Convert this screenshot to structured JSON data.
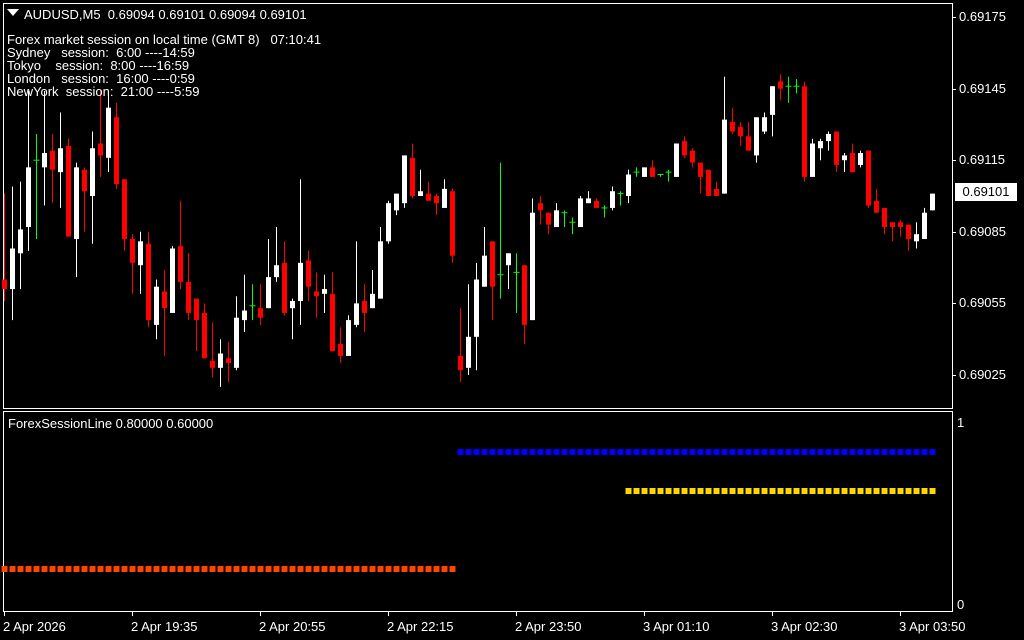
{
  "header": {
    "symbol_line": "AUDUSD,M5  0.69094 0.69101 0.69094 0.69101",
    "menu_icon": "triangle-down-icon"
  },
  "sessions": {
    "title": "Forex market session on local time (GMT 8)   07:10:41",
    "lines": [
      "Sydney   session:  6:00 ----14:59",
      "Tokyo    session:  8:00 ----16:59",
      "London   session:  16:00 ----0:59",
      "NewYork  session:  21:00 ----5:59"
    ]
  },
  "colors": {
    "bull": "#ffffff",
    "bear": "#ff0000",
    "doji": "#00ff00",
    "background": "#000000",
    "grid_border": "#ffffff"
  },
  "chart_data": [
    {
      "type": "candlestick",
      "symbol": "AUDUSD",
      "timeframe": "M5",
      "ylim": [
        0.69018,
        0.69178
      ],
      "price_ticks": [
        "0.69175",
        "0.69145",
        "0.69115",
        "0.69085",
        "0.69055",
        "0.69025"
      ],
      "current_price": "0.69101",
      "time_labels": [
        "2 Apr 2026",
        "2 Apr 19:35",
        "2 Apr 20:55",
        "2 Apr 22:15",
        "2 Apr 23:50",
        "3 Apr 01:10",
        "3 Apr 02:30",
        "3 Apr 03:50"
      ],
      "ohlc": [
        [
          0.69065,
          0.69101,
          0.69056,
          0.69061
        ],
        [
          0.69061,
          0.69104,
          0.69048,
          0.69078
        ],
        [
          0.69076,
          0.69106,
          0.69061,
          0.69086
        ],
        [
          0.69087,
          0.69144,
          0.69077,
          0.69112
        ],
        [
          0.69115,
          0.69126,
          0.69082,
          0.69115
        ],
        [
          0.69112,
          0.69144,
          0.69096,
          0.69118
        ],
        [
          0.69119,
          0.69126,
          0.69097,
          0.69111
        ],
        [
          0.6911,
          0.69135,
          0.69095,
          0.6912
        ],
        [
          0.69121,
          0.69124,
          0.69083,
          0.69083
        ],
        [
          0.69082,
          0.69114,
          0.69066,
          0.69112
        ],
        [
          0.69111,
          0.69112,
          0.69085,
          0.69102
        ],
        [
          0.691,
          0.69127,
          0.6908,
          0.6912
        ],
        [
          0.69122,
          0.69144,
          0.69108,
          0.69117
        ],
        [
          0.69116,
          0.69144,
          0.6911,
          0.69137
        ],
        [
          0.69133,
          0.69139,
          0.69103,
          0.69105
        ],
        [
          0.69107,
          0.69107,
          0.69077,
          0.69082
        ],
        [
          0.69082,
          0.69084,
          0.69059,
          0.69072
        ],
        [
          0.69071,
          0.69085,
          0.69059,
          0.69081
        ],
        [
          0.6908,
          0.69085,
          0.69045,
          0.69048
        ],
        [
          0.69046,
          0.69065,
          0.6904,
          0.69062
        ],
        [
          0.6906,
          0.69069,
          0.69033,
          0.69053
        ],
        [
          0.69051,
          0.69079,
          0.69051,
          0.69078
        ],
        [
          0.69079,
          0.69098,
          0.69061,
          0.69064
        ],
        [
          0.69064,
          0.69076,
          0.69048,
          0.69051
        ],
        [
          0.69057,
          0.69057,
          0.69035,
          0.69048
        ],
        [
          0.69051,
          0.69055,
          0.69032,
          0.69032
        ],
        [
          0.69031,
          0.69047,
          0.69024,
          0.69028
        ],
        [
          0.69028,
          0.6904,
          0.6902,
          0.69034
        ],
        [
          0.69032,
          0.69039,
          0.69022,
          0.6903
        ],
        [
          0.69028,
          0.69058,
          0.69027,
          0.69049
        ],
        [
          0.69048,
          0.69067,
          0.69043,
          0.69052
        ],
        [
          0.69054,
          0.69063,
          0.69048,
          0.69054
        ],
        [
          0.69053,
          0.69063,
          0.69046,
          0.69049
        ],
        [
          0.69053,
          0.69082,
          0.69053,
          0.69066
        ],
        [
          0.69066,
          0.69087,
          0.69064,
          0.69071
        ],
        [
          0.69072,
          0.69081,
          0.6905,
          0.69051
        ],
        [
          0.69053,
          0.69057,
          0.6904,
          0.69056
        ],
        [
          0.69056,
          0.69107,
          0.69046,
          0.69072
        ],
        [
          0.69073,
          0.69077,
          0.69056,
          0.69062
        ],
        [
          0.6906,
          0.69068,
          0.69049,
          0.69058
        ],
        [
          0.69059,
          0.69067,
          0.69051,
          0.69061
        ],
        [
          0.69059,
          0.69068,
          0.69035,
          0.69035
        ],
        [
          0.69038,
          0.69045,
          0.6903,
          0.69033
        ],
        [
          0.69033,
          0.6905,
          0.69033,
          0.69048
        ],
        [
          0.69046,
          0.69081,
          0.69045,
          0.69055
        ],
        [
          0.69056,
          0.69063,
          0.69043,
          0.69051
        ],
        [
          0.69053,
          0.69069,
          0.69053,
          0.69059
        ],
        [
          0.69057,
          0.69087,
          0.69057,
          0.69081
        ],
        [
          0.69081,
          0.69098,
          0.6908,
          0.69097
        ],
        [
          0.69094,
          0.69101,
          0.69092,
          0.69101
        ],
        [
          0.69097,
          0.69117,
          0.69095,
          0.69117
        ],
        [
          0.69116,
          0.69122,
          0.69099,
          0.691
        ],
        [
          0.691,
          0.69111,
          0.691,
          0.69102
        ],
        [
          0.69101,
          0.69106,
          0.69098,
          0.69098
        ],
        [
          0.691,
          0.69101,
          0.69092,
          0.69097
        ],
        [
          0.69095,
          0.69107,
          0.69095,
          0.69103
        ],
        [
          0.69102,
          0.69103,
          0.69072,
          0.69075
        ],
        [
          0.69033,
          0.69053,
          0.69022,
          0.69027
        ],
        [
          0.69028,
          0.69063,
          0.69025,
          0.69041
        ],
        [
          0.69041,
          0.69072,
          0.69027,
          0.69065
        ],
        [
          0.69062,
          0.69087,
          0.69062,
          0.69075
        ],
        [
          0.69081,
          0.69081,
          0.69048,
          0.69062
        ],
        [
          0.69067,
          0.69114,
          0.69057,
          0.69067
        ],
        [
          0.69071,
          0.69076,
          0.69061,
          0.69076
        ],
        [
          0.69068,
          0.69076,
          0.69051,
          0.69068
        ],
        [
          0.69071,
          0.69071,
          0.69038,
          0.69046
        ],
        [
          0.69048,
          0.69099,
          0.69048,
          0.69093
        ],
        [
          0.69097,
          0.691,
          0.69088,
          0.69094
        ],
        [
          0.69093,
          0.69093,
          0.69084,
          0.69088
        ],
        [
          0.69087,
          0.69097,
          0.69087,
          0.69094
        ],
        [
          0.69093,
          0.69094,
          0.69087,
          0.69093
        ],
        [
          0.69089,
          0.69091,
          0.69084,
          0.69089
        ],
        [
          0.69087,
          0.691,
          0.69087,
          0.69099
        ],
        [
          0.69097,
          0.69102,
          0.69097,
          0.69099
        ],
        [
          0.69098,
          0.69099,
          0.69095,
          0.69095
        ],
        [
          0.69095,
          0.69096,
          0.69091,
          0.69095
        ],
        [
          0.69095,
          0.69104,
          0.69094,
          0.69102
        ],
        [
          0.69101,
          0.69102,
          0.69096,
          0.69101
        ],
        [
          0.691,
          0.69111,
          0.69097,
          0.69109
        ],
        [
          0.6911,
          0.69112,
          0.69108,
          0.6911
        ],
        [
          0.69108,
          0.69112,
          0.69108,
          0.69112
        ],
        [
          0.69112,
          0.69115,
          0.69108,
          0.69108
        ],
        [
          0.69109,
          0.69109,
          0.69108,
          0.69109
        ],
        [
          0.6911,
          0.69111,
          0.69106,
          0.6911
        ],
        [
          0.69108,
          0.69122,
          0.69108,
          0.69122
        ],
        [
          0.69123,
          0.69125,
          0.69116,
          0.69117
        ],
        [
          0.69119,
          0.6912,
          0.69112,
          0.69114
        ],
        [
          0.69114,
          0.69114,
          0.69101,
          0.69108
        ],
        [
          0.69111,
          0.69111,
          0.691,
          0.691
        ],
        [
          0.69103,
          0.69106,
          0.691,
          0.691
        ],
        [
          0.69101,
          0.6915,
          0.69101,
          0.69132
        ],
        [
          0.69131,
          0.69137,
          0.69126,
          0.69127
        ],
        [
          0.69129,
          0.69131,
          0.69121,
          0.69125
        ],
        [
          0.69125,
          0.69131,
          0.69119,
          0.69119
        ],
        [
          0.69117,
          0.69133,
          0.69114,
          0.69133
        ],
        [
          0.69127,
          0.69135,
          0.69126,
          0.69133
        ],
        [
          0.69134,
          0.69146,
          0.69125,
          0.69146
        ],
        [
          0.69148,
          0.69151,
          0.6914,
          0.69145
        ],
        [
          0.69146,
          0.6915,
          0.69139,
          0.69146
        ],
        [
          0.69146,
          0.69149,
          0.69143,
          0.69146
        ],
        [
          0.69146,
          0.69148,
          0.69106,
          0.69108
        ],
        [
          0.69108,
          0.69124,
          0.69108,
          0.69122
        ],
        [
          0.6912,
          0.69124,
          0.69115,
          0.69123
        ],
        [
          0.69123,
          0.69127,
          0.69119,
          0.69126
        ],
        [
          0.69127,
          0.69127,
          0.6911,
          0.69113
        ],
        [
          0.69115,
          0.69118,
          0.6911,
          0.69117
        ],
        [
          0.69118,
          0.69122,
          0.6911,
          0.6911
        ],
        [
          0.69113,
          0.69119,
          0.69112,
          0.69118
        ],
        [
          0.69119,
          0.69119,
          0.69095,
          0.69096
        ],
        [
          0.69098,
          0.69103,
          0.69093,
          0.69093
        ],
        [
          0.69095,
          0.69095,
          0.69084,
          0.69087
        ],
        [
          0.69089,
          0.69089,
          0.69081,
          0.69087
        ],
        [
          0.69089,
          0.6909,
          0.69083,
          0.69087
        ],
        [
          0.69088,
          0.69088,
          0.69077,
          0.69082
        ],
        [
          0.69081,
          0.69089,
          0.69078,
          0.69084
        ],
        [
          0.69082,
          0.69095,
          0.69082,
          0.69093
        ],
        [
          0.69094,
          0.69101,
          0.69094,
          0.69101
        ]
      ]
    },
    {
      "type": "indicator",
      "label": "ForexSessionLine 0.80000 0.60000",
      "ylim": [
        0,
        1
      ],
      "y_ticks": [
        "1",
        "0"
      ],
      "series": [
        {
          "color": "#ff4500",
          "value": 0.2,
          "from_bar": 0,
          "to_bar": 56
        },
        {
          "color": "#0000ff",
          "value": 0.8,
          "from_bar": 57,
          "to_bar": 116
        },
        {
          "color": "#ffd700",
          "value": 0.6,
          "from_bar": 78,
          "to_bar": 116
        }
      ]
    }
  ]
}
